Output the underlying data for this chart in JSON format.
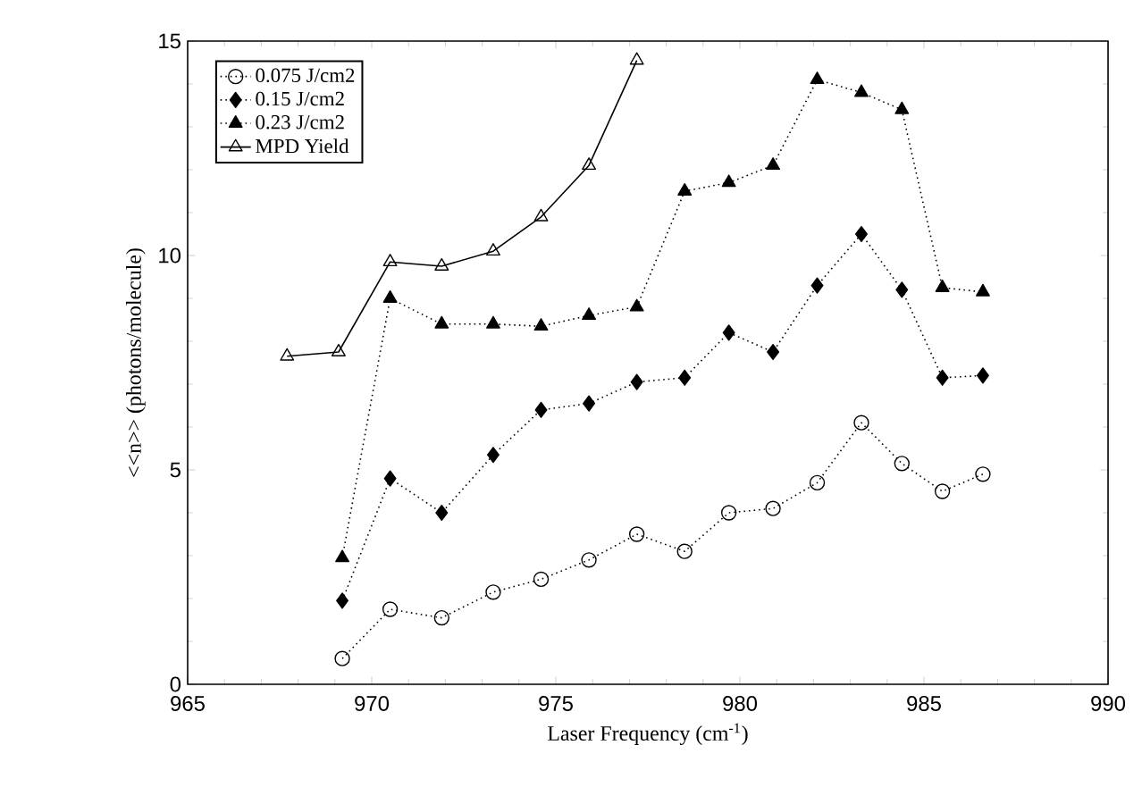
{
  "chart_data": {
    "type": "line",
    "xlabel": "Laser Frequency (cm$^{-1}$)",
    "ylabel": "<<n>> (photons/molecule)",
    "xlim": [
      965,
      990
    ],
    "xticks": [
      965,
      970,
      975,
      980,
      985,
      990
    ],
    "ylim": [
      0,
      15
    ],
    "yticks": [
      0,
      5,
      10,
      15
    ],
    "legend": "top left",
    "grid": false,
    "series": [
      {
        "name": "0.075 J/cm2",
        "color": "#000000",
        "marker": "circle",
        "line_style": "dotted",
        "x": [
          969.2,
          970.5,
          971.9,
          973.3,
          974.6,
          975.9,
          977.2,
          978.5,
          979.7,
          980.9,
          982.1,
          983.3,
          984.4,
          985.5,
          986.6
        ],
        "values": [
          0.6,
          1.75,
          1.55,
          2.15,
          2.45,
          2.9,
          3.5,
          3.1,
          4.0,
          4.1,
          4.7,
          6.1,
          5.15,
          4.5,
          4.9
        ]
      },
      {
        "name": "0.15 J/cm2",
        "color": "#000000",
        "marker": "diamond",
        "line_style": "dotted",
        "x": [
          969.2,
          970.5,
          971.9,
          973.3,
          974.6,
          975.9,
          977.2,
          978.5,
          979.7,
          980.9,
          982.1,
          983.3,
          984.4,
          985.5,
          986.6
        ],
        "values": [
          1.95,
          4.8,
          4.0,
          5.35,
          6.4,
          6.55,
          7.05,
          7.15,
          8.2,
          7.75,
          9.3,
          10.5,
          9.2,
          7.15,
          7.2
        ]
      },
      {
        "name": "0.23 J/cm2",
        "color": "#000000",
        "marker": "triangle",
        "line_style": "dotted",
        "x": [
          969.2,
          970.5,
          971.9,
          973.3,
          974.6,
          975.9,
          977.2,
          978.5,
          979.7,
          980.9,
          982.1,
          983.3,
          984.4,
          985.5,
          986.6
        ],
        "values": [
          2.95,
          9.0,
          8.4,
          8.4,
          8.35,
          8.6,
          8.8,
          11.5,
          11.7,
          12.1,
          14.1,
          13.8,
          13.4,
          9.25,
          9.15
        ]
      },
      {
        "name": "MPD Yield",
        "color": "#000000",
        "marker": "triangle",
        "line_style": "solid",
        "x": [
          967.7,
          969.1,
          970.5,
          971.9,
          973.3,
          974.6,
          975.9,
          977.2
        ],
        "values": [
          7.65,
          7.75,
          9.85,
          9.75,
          10.1,
          10.9,
          12.1,
          14.55
        ]
      }
    ]
  }
}
